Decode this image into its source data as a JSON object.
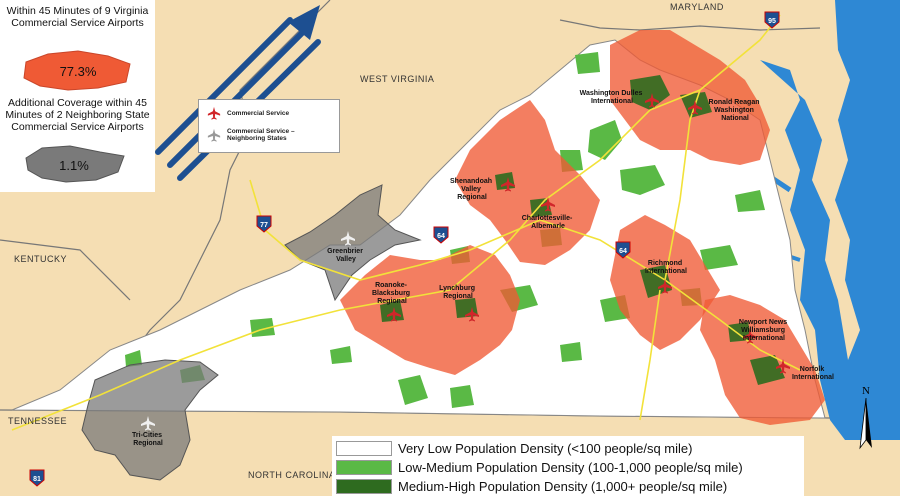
{
  "stats": {
    "va_title": "Within 45 Minutes of 9 Virginia Commercial Service Airports",
    "va_value": "77.3%",
    "nb_title": "Additional Coverage within 45 Minutes of 2 Neighboring State Commercial Service Airports",
    "nb_value": "1.1%"
  },
  "airport_legend": {
    "commercial": "Commercial Service",
    "neighboring": "Commercial Service – Neighboring States"
  },
  "states": {
    "maryland": "MARYLAND",
    "west_virginia": "WEST VIRGINIA",
    "kentucky": "KENTUCKY",
    "tennessee": "TENNESSEE",
    "north_carolina": "NORTH CAROLINA"
  },
  "airports": {
    "dulles": [
      "Washington Dulles",
      "International"
    ],
    "reagan": [
      "Ronald Reagan",
      "Washington",
      "National"
    ],
    "shenandoah": [
      "Shenandoah",
      "Valley",
      "Regional"
    ],
    "charlottesville": [
      "Charlottesville-",
      "Albemarle"
    ],
    "richmond": [
      "Richmond",
      "International"
    ],
    "greenbrier": [
      "Greenbrier",
      "Valley"
    ],
    "roanoke": [
      "Roanoke-",
      "Blacksburg",
      "Regional"
    ],
    "lynchburg": [
      "Lynchburg",
      "Regional"
    ],
    "newport": [
      "Newport News",
      "Williamsburg",
      "International"
    ],
    "norfolk": [
      "Norfolk",
      "International"
    ],
    "tricities": [
      "Tri-Cities",
      "Regional"
    ]
  },
  "highways": {
    "i95": "95",
    "i77": "77",
    "i64_west": "64",
    "i64_east": "64",
    "i81": "81"
  },
  "north": "N",
  "legend": {
    "very_low": "Very Low Population Density (<100 people/sq mile)",
    "low_medium": "Low-Medium Population Density (100-1,000 people/sq mile)",
    "medium_high": "Medium-High Population Density (1,000+ people/sq mile)"
  },
  "colors": {
    "background": "#f5deb3",
    "water": "#2e88d4",
    "virginia": "#ffffff",
    "va_coverage": "#ef5a35",
    "neighbor_coverage": "#7a7a7a",
    "low_medium_density": "#5ab945",
    "medium_high_density": "#2e6b1f",
    "arrow": "#1d4f91"
  }
}
